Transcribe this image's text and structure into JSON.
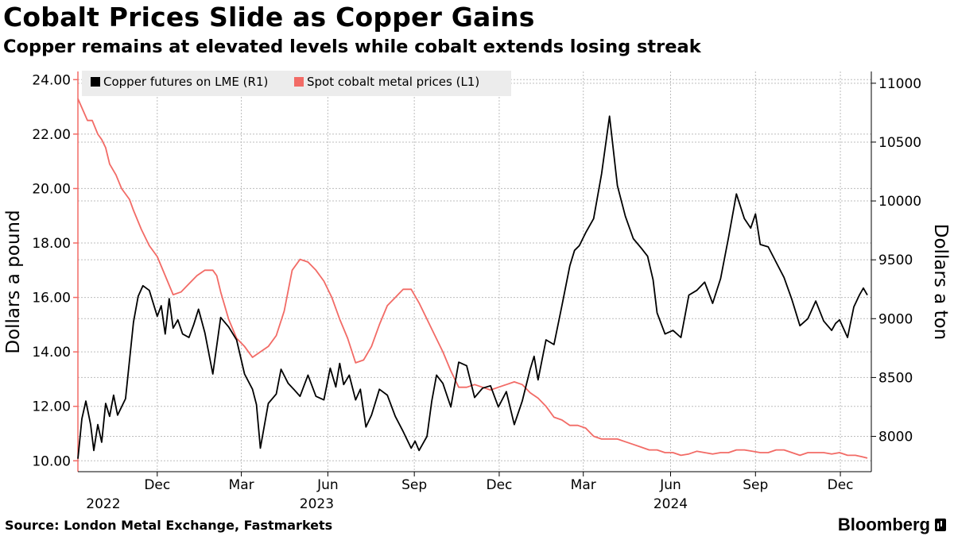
{
  "header": {
    "title": "Cobalt Prices Slide as Copper Gains",
    "subtitle": "Copper remains at elevated levels while cobalt extends losing streak"
  },
  "footer": {
    "source": "Source: London Metal Exchange, Fastmarkets",
    "brand": "Bloomberg"
  },
  "colors": {
    "copper": "#000000",
    "cobalt": "#f26b66",
    "grid": "#bdbdbd",
    "legend_bg": "#ececec"
  },
  "chart_data": {
    "type": "line",
    "title": "Cobalt Prices Slide as Copper Gains",
    "subtitle": "Copper remains at elevated levels while cobalt extends losing streak",
    "ylabel_left": "Dollars a pound",
    "ylabel_right": "Dollars a ton",
    "ylim_left": [
      9.6,
      24.3
    ],
    "ylim_right": [
      7700,
      11100
    ],
    "yticks_left": [
      "10.00",
      "12.00",
      "14.00",
      "16.00",
      "18.00",
      "20.00",
      "22.00",
      "24.00"
    ],
    "yticks_right": [
      "8000",
      "8500",
      "9000",
      "9500",
      "10000",
      "10500",
      "11000"
    ],
    "xlim": [
      0,
      100
    ],
    "xticks": [
      {
        "pos": 10.0,
        "label": "Dec"
      },
      {
        "pos": 20.6,
        "label": "Mar"
      },
      {
        "pos": 31.5,
        "label": "Jun"
      },
      {
        "pos": 42.4,
        "label": "Sep"
      },
      {
        "pos": 53.1,
        "label": "Dec"
      },
      {
        "pos": 63.7,
        "label": "Mar"
      },
      {
        "pos": 74.7,
        "label": "Jun"
      },
      {
        "pos": 85.4,
        "label": "Sep"
      },
      {
        "pos": 96.1,
        "label": "Dec"
      }
    ],
    "year_labels": [
      {
        "pos": 3.2,
        "label": "2022"
      },
      {
        "pos": 30.1,
        "label": "2023"
      },
      {
        "pos": 74.7,
        "label": "2024"
      }
    ],
    "grid": true,
    "legend_position": "top-left",
    "legend": [
      "Copper futures on LME (R1)",
      "Spot cobalt metal prices (L1)"
    ],
    "series": [
      {
        "name": "Copper futures on LME (R1)",
        "axis": "right",
        "x": [
          0,
          0.5,
          1.0,
          1.6,
          2.0,
          2.5,
          3.0,
          3.5,
          4.0,
          4.5,
          5.0,
          6.0,
          7.0,
          7.6,
          8.2,
          9.0,
          10.0,
          10.5,
          11.0,
          11.5,
          12.0,
          12.6,
          13.2,
          14.0,
          14.6,
          15.2,
          16.0,
          17.0,
          18.0,
          19.0,
          20.0,
          21.0,
          22.0,
          22.5,
          23.0,
          24.0,
          25.0,
          25.6,
          26.5,
          27.2,
          28.0,
          29.0,
          30.0,
          31.0,
          31.8,
          32.5,
          33.0,
          33.5,
          34.2,
          35.0,
          35.6,
          36.3,
          37.0,
          38.0,
          39.0,
          40.0,
          41.0,
          42.0,
          42.5,
          43.0,
          43.5,
          44.0,
          44.6,
          45.2,
          46.0,
          47.0,
          48.0,
          49.0,
          50.0,
          51.0,
          52.0,
          53.0,
          54.0,
          55.0,
          56.0,
          57.0,
          57.5,
          58.0,
          59.0,
          60.0,
          61.0,
          62.0,
          62.6,
          63.2,
          64.0,
          65.0,
          66.0,
          67.0,
          68.0,
          69.0,
          70.0,
          71.0,
          71.8,
          72.5,
          73.0,
          74.0,
          75.0,
          76.0,
          77.0,
          78.0,
          79.0,
          80.0,
          81.0,
          82.0,
          83.0,
          84.0,
          84.8,
          85.4,
          86.0,
          87.0,
          88.0,
          89.0,
          90.0,
          91.0,
          92.0,
          93.0,
          94.0,
          95.0,
          95.5,
          96.0,
          97.0,
          97.8,
          98.5,
          99.0,
          99.5
        ],
        "values": [
          7810,
          8150,
          8300,
          8100,
          7880,
          8100,
          7950,
          8280,
          8170,
          8350,
          8180,
          8320,
          8970,
          9190,
          9280,
          9240,
          9020,
          9110,
          8870,
          9170,
          8920,
          8990,
          8870,
          8840,
          8950,
          9080,
          8880,
          8530,
          9010,
          8930,
          8820,
          8530,
          8400,
          8270,
          7900,
          8280,
          8360,
          8570,
          8450,
          8400,
          8340,
          8520,
          8340,
          8310,
          8580,
          8420,
          8620,
          8440,
          8520,
          8310,
          8400,
          8080,
          8180,
          8400,
          8350,
          8170,
          8040,
          7900,
          7960,
          7880,
          7940,
          8000,
          8300,
          8520,
          8450,
          8250,
          8630,
          8600,
          8330,
          8410,
          8430,
          8250,
          8380,
          8100,
          8300,
          8570,
          8680,
          8480,
          8820,
          8780,
          9110,
          9450,
          9580,
          9620,
          9730,
          9850,
          10230,
          10720,
          10130,
          9870,
          9680,
          9600,
          9530,
          9330,
          9050,
          8870,
          8900,
          8840,
          9200,
          9240,
          9310,
          9130,
          9340,
          9690,
          10060,
          9850,
          9770,
          9890,
          9630,
          9610,
          9480,
          9350,
          9160,
          8940,
          9000,
          9150,
          8980,
          8900,
          8960,
          8990,
          8840,
          9100,
          9200,
          9260,
          9200
        ],
        "note": "approximate weekly-level trace of the plotted line"
      },
      {
        "name": "Spot cobalt metal prices (L1)",
        "axis": "left",
        "x": [
          0,
          0.6,
          1.2,
          1.8,
          2.5,
          3.0,
          3.5,
          4.0,
          4.8,
          5.5,
          6.5,
          7.0,
          8.0,
          9.0,
          10.0,
          11.0,
          12.0,
          13.0,
          14.0,
          15.0,
          16.0,
          17.0,
          17.5,
          18.0,
          19.0,
          20.0,
          21.0,
          22.0,
          23.0,
          24.0,
          25.0,
          26.0,
          27.0,
          28.0,
          29.0,
          30.0,
          31.0,
          32.0,
          33.0,
          34.0,
          35.0,
          36.0,
          37.0,
          38.0,
          39.0,
          40.0,
          41.0,
          42.0,
          43.0,
          44.0,
          45.0,
          46.0,
          47.0,
          48.0,
          49.0,
          50.0,
          51.0,
          52.0,
          53.0,
          54.0,
          55.0,
          56.0,
          57.0,
          58.0,
          59.0,
          60.0,
          61.0,
          62.0,
          63.0,
          64.0,
          65.0,
          66.0,
          67.0,
          68.0,
          69.0,
          70.0,
          71.0,
          72.0,
          73.0,
          74.0,
          75.0,
          76.0,
          77.0,
          78.0,
          79.0,
          80.0,
          81.0,
          82.0,
          83.0,
          84.0,
          85.0,
          86.0,
          87.0,
          88.0,
          89.0,
          90.0,
          91.0,
          92.0,
          93.0,
          94.0,
          95.0,
          96.0,
          97.0,
          98.0,
          98.8,
          99.5
        ],
        "values": [
          23.3,
          22.9,
          22.5,
          22.5,
          22.0,
          21.8,
          21.5,
          20.9,
          20.5,
          20.0,
          19.6,
          19.2,
          18.5,
          17.9,
          17.5,
          16.8,
          16.1,
          16.2,
          16.5,
          16.8,
          17.0,
          17.0,
          16.8,
          16.2,
          15.2,
          14.5,
          14.2,
          13.8,
          14.0,
          14.2,
          14.6,
          15.5,
          17.0,
          17.4,
          17.3,
          17.0,
          16.6,
          16.0,
          15.2,
          14.5,
          13.6,
          13.7,
          14.2,
          15.0,
          15.7,
          16.0,
          16.3,
          16.3,
          15.8,
          15.2,
          14.6,
          14.0,
          13.3,
          12.7,
          12.7,
          12.8,
          12.7,
          12.6,
          12.7,
          12.8,
          12.9,
          12.8,
          12.5,
          12.3,
          12.0,
          11.6,
          11.5,
          11.3,
          11.3,
          11.2,
          10.9,
          10.8,
          10.8,
          10.8,
          10.7,
          10.6,
          10.5,
          10.4,
          10.4,
          10.3,
          10.3,
          10.2,
          10.25,
          10.35,
          10.3,
          10.25,
          10.3,
          10.3,
          10.4,
          10.4,
          10.35,
          10.3,
          10.3,
          10.4,
          10.4,
          10.3,
          10.2,
          10.3,
          10.3,
          10.3,
          10.25,
          10.3,
          10.2,
          10.2,
          10.15,
          10.1
        ],
        "note": "approximate weekly-level trace of the plotted line"
      }
    ]
  }
}
